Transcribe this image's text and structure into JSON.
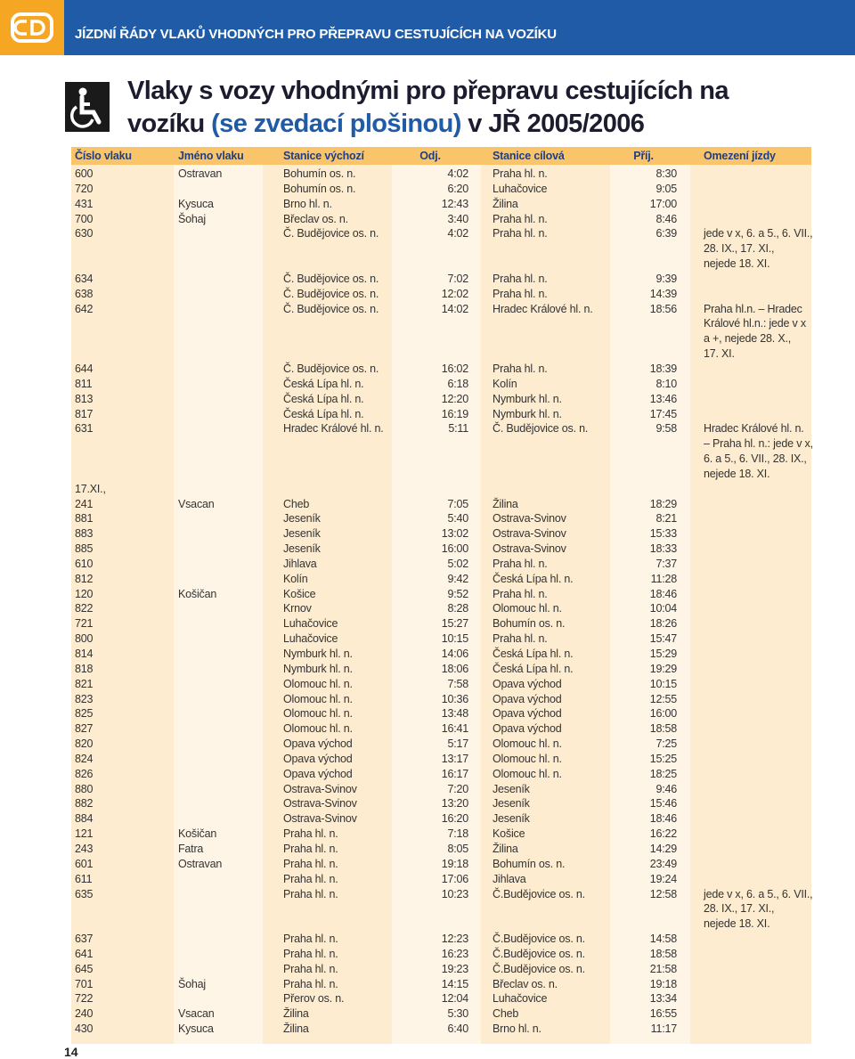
{
  "header": {
    "title": "JÍZDNÍ ŘÁDY VLAKŮ VHODNÝCH PRO PŘEPRAVU CESTUJÍCÍCH NA VOZÍKU"
  },
  "title": {
    "line1": "Vlaky s vozy vhodnými pro přepravu cestujících na",
    "line2a": "vozíku",
    "line2b": "(se zvedací plošinou)",
    "line2c": "v JŘ 2005/2006"
  },
  "table": {
    "columns": [
      "Číslo vlaku",
      "Jméno vlaku",
      "Stanice výchozí",
      "Odj.",
      "Stanice cílová",
      "Příj.",
      "Omezení jízdy"
    ],
    "rows": [
      {
        "number": "600",
        "name": "Ostravan",
        "from": "Bohumín os. n.",
        "dep": "4:02",
        "to": "Praha hl. n.",
        "arr": "8:30"
      },
      {
        "number": "720",
        "from": "Bohumín os. n.",
        "dep": "6:20",
        "to": "Luhačovice",
        "arr": "9:05"
      },
      {
        "number": "431",
        "name": "Kysuca",
        "from": "Brno hl. n.",
        "dep": "12:43",
        "to": "Žilina",
        "arr": "17:00"
      },
      {
        "number": "700",
        "name": "Šohaj",
        "from": "Břeclav os. n.",
        "dep": "3:40",
        "to": "Praha hl. n.",
        "arr": "8:46"
      },
      {
        "number": "630",
        "from": "Č. Budějovice os. n.",
        "dep": "4:02",
        "to": "Praha hl. n.",
        "arr": "6:39",
        "note": [
          "jede v x, 6. a 5., 6. VII.,",
          "28. IX., 17. XI.,",
          "nejede 18. XI."
        ]
      },
      {
        "number": "634",
        "from": "Č. Budějovice os. n.",
        "dep": "7:02",
        "to": "Praha hl. n.",
        "arr": "9:39"
      },
      {
        "number": "638",
        "from": "Č. Budějovice os. n.",
        "dep": "12:02",
        "to": "Praha hl. n.",
        "arr": "14:39"
      },
      {
        "number": "642",
        "from": "Č. Budějovice os. n.",
        "dep": "14:02",
        "to": "Hradec Králové hl. n.",
        "arr": "18:56",
        "note": [
          "Praha hl.n. – Hradec",
          "Králové hl.n.: jede v x",
          "a +, nejede 28. X.,",
          "17. XI."
        ]
      },
      {
        "number": "644",
        "from": "Č. Budějovice os. n.",
        "dep": "16:02",
        "to": "Praha hl. n.",
        "arr": "18:39"
      },
      {
        "number": "811",
        "from": "Česká Lípa hl. n.",
        "dep": "6:18",
        "to": "Kolín",
        "arr": "8:10"
      },
      {
        "number": "813",
        "from": "Česká Lípa hl. n.",
        "dep": "12:20",
        "to": "Nymburk hl. n.",
        "arr": "13:46"
      },
      {
        "number": "817",
        "from": "Česká Lípa hl. n.",
        "dep": "16:19",
        "to": "Nymburk hl. n.",
        "arr": "17:45"
      },
      {
        "number": "631",
        "from": "Hradec Králové hl. n.",
        "dep": "5:11",
        "to": "Č. Budějovice os. n.",
        "arr": "9:58",
        "note": [
          "Hradec Králové hl. n.",
          "– Praha hl. n.: jede v x,",
          "6. a 5., 6. VII., 28. IX.,",
          "nejede 18. XI."
        ]
      },
      {
        "number": "17.XI.,"
      },
      {
        "number": "241",
        "name": "Vsacan",
        "from": "Cheb",
        "dep": "7:05",
        "to": "Žilina",
        "arr": "18:29"
      },
      {
        "number": "881",
        "from": "Jeseník",
        "dep": "5:40",
        "to": "Ostrava-Svinov",
        "arr": "8:21"
      },
      {
        "number": "883",
        "from": "Jeseník",
        "dep": "13:02",
        "to": "Ostrava-Svinov",
        "arr": "15:33"
      },
      {
        "number": "885",
        "from": "Jeseník",
        "dep": "16:00",
        "to": "Ostrava-Svinov",
        "arr": "18:33"
      },
      {
        "number": "610",
        "from": "Jihlava",
        "dep": "5:02",
        "to": "Praha hl. n.",
        "arr": "7:37"
      },
      {
        "number": "812",
        "from": "Kolín",
        "dep": "9:42",
        "to": "Česká Lípa hl. n.",
        "arr": "11:28"
      },
      {
        "number": "120",
        "name": "Košičan",
        "from": "Košice",
        "dep": "9:52",
        "to": "Praha hl. n.",
        "arr": "18:46"
      },
      {
        "number": "822",
        "from": "Krnov",
        "dep": "8:28",
        "to": "Olomouc hl. n.",
        "arr": "10:04"
      },
      {
        "number": "721",
        "from": "Luhačovice",
        "dep": "15:27",
        "to": "Bohumín os. n.",
        "arr": "18:26"
      },
      {
        "number": "800",
        "from": "Luhačovice",
        "dep": "10:15",
        "to": "Praha hl. n.",
        "arr": "15:47"
      },
      {
        "number": "814",
        "from": "Nymburk hl. n.",
        "dep": "14:06",
        "to": "Česká Lípa hl. n.",
        "arr": "15:29"
      },
      {
        "number": "818",
        "from": "Nymburk hl. n.",
        "dep": "18:06",
        "to": "Česká Lípa hl. n.",
        "arr": "19:29"
      },
      {
        "number": "821",
        "from": "Olomouc hl. n.",
        "dep": "7:58",
        "to": "Opava východ",
        "arr": "10:15"
      },
      {
        "number": "823",
        "from": "Olomouc hl. n.",
        "dep": "10:36",
        "to": "Opava východ",
        "arr": "12:55"
      },
      {
        "number": "825",
        "from": "Olomouc hl. n.",
        "dep": "13:48",
        "to": "Opava východ",
        "arr": "16:00"
      },
      {
        "number": "827",
        "from": "Olomouc hl. n.",
        "dep": "16:41",
        "to": "Opava východ",
        "arr": "18:58"
      },
      {
        "number": "820",
        "from": "Opava východ",
        "dep": "5:17",
        "to": "Olomouc hl. n.",
        "arr": "7:25"
      },
      {
        "number": "824",
        "from": "Opava východ",
        "dep": "13:17",
        "to": "Olomouc hl. n.",
        "arr": "15:25"
      },
      {
        "number": "826",
        "from": "Opava východ",
        "dep": "16:17",
        "to": "Olomouc hl. n.",
        "arr": "18:25"
      },
      {
        "number": "880",
        "from": "Ostrava-Svinov",
        "dep": "7:20",
        "to": "Jeseník",
        "arr": "9:46"
      },
      {
        "number": "882",
        "from": "Ostrava-Svinov",
        "dep": "13:20",
        "to": "Jeseník",
        "arr": "15:46"
      },
      {
        "number": "884",
        "from": "Ostrava-Svinov",
        "dep": "16:20",
        "to": "Jeseník",
        "arr": "18:46"
      },
      {
        "number": "121",
        "name": "Košičan",
        "from": "Praha hl. n.",
        "dep": "7:18",
        "to": "Košice",
        "arr": "16:22"
      },
      {
        "number": "243",
        "name": "Fatra",
        "from": "Praha hl. n.",
        "dep": "8:05",
        "to": "Žilina",
        "arr": "14:29"
      },
      {
        "number": "601",
        "name": "Ostravan",
        "from": "Praha hl. n.",
        "dep": "19:18",
        "to": "Bohumín os. n.",
        "arr": "23:49"
      },
      {
        "number": "611",
        "from": "Praha hl. n.",
        "dep": "17:06",
        "to": "Jihlava",
        "arr": "19:24"
      },
      {
        "number": "635",
        "from": "Praha hl. n.",
        "dep": "10:23",
        "to": "Č.Budějovice os. n.",
        "arr": "12:58",
        "note": [
          "jede v x, 6. a 5., 6. VII.,",
          "28. IX., 17. XI.,",
          "nejede 18. XI."
        ]
      },
      {
        "number": "637",
        "from": "Praha hl. n.",
        "dep": "12:23",
        "to": "Č.Budějovice os. n.",
        "arr": "14:58"
      },
      {
        "number": "641",
        "from": "Praha hl. n.",
        "dep": "16:23",
        "to": "Č.Budějovice os. n.",
        "arr": "18:58"
      },
      {
        "number": "645",
        "from": "Praha hl. n.",
        "dep": "19:23",
        "to": "Č.Budějovice os. n.",
        "arr": "21:58"
      },
      {
        "number": "701",
        "name": "Šohaj",
        "from": "Praha hl. n.",
        "dep": "14:15",
        "to": "Břeclav os. n.",
        "arr": "19:18"
      },
      {
        "number": "722",
        "from": "Přerov os. n.",
        "dep": "12:04",
        "to": "Luhačovice",
        "arr": "13:34"
      },
      {
        "number": "240",
        "name": "Vsacan",
        "from": "Žilina",
        "dep": "5:30",
        "to": "Cheb",
        "arr": "16:55"
      },
      {
        "number": "430",
        "name": "Kysuca",
        "from": "Žilina",
        "dep": "6:40",
        "to": "Brno hl. n.",
        "arr": "11:17"
      }
    ]
  },
  "footer": {
    "page": "14"
  }
}
